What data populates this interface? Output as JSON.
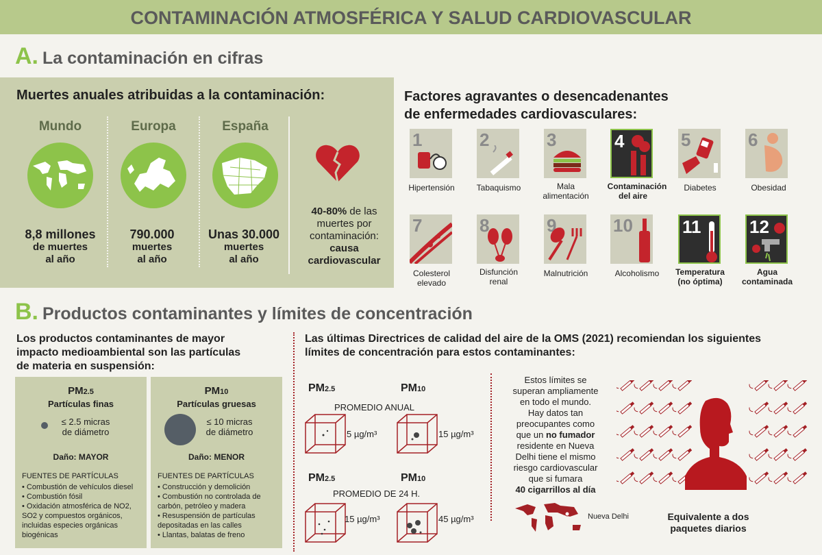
{
  "banner": "CONTAMINACIÓN ATMOSFÉRICA Y SALUD CARDIOVASCULAR",
  "section_a": {
    "letter": "A.",
    "title": "La contaminación en cifras"
  },
  "deaths": {
    "title": "Muertes anuales atribuidas a la contaminación:",
    "regions": [
      {
        "name": "Mundo",
        "big": "8,8 millones",
        "line1": "de muertes",
        "line2": "al año"
      },
      {
        "name": "Europa",
        "big": "790.000",
        "line1": "muertes",
        "line2": "al año"
      },
      {
        "name": "España",
        "big": "Unas 30.000",
        "line1": "muertes",
        "line2": "al año"
      }
    ],
    "cardio": {
      "pct": "40-80%",
      "rest1": " de las",
      "line2": "muertes por",
      "line3": "contaminación:",
      "line4": "causa",
      "line5": "cardiovascular"
    }
  },
  "factors": {
    "title1": "Factores agravantes o desencadenantes",
    "title2": "de enfermedades cardiovasculares:",
    "items": [
      {
        "num": "1",
        "label": "Hipertensión",
        "label2": ""
      },
      {
        "num": "2",
        "label": "Tabaquismo",
        "label2": ""
      },
      {
        "num": "3",
        "label": "Mala",
        "label2": "alimentación"
      },
      {
        "num": "4",
        "label": "Contaminación",
        "label2": "del aire"
      },
      {
        "num": "5",
        "label": "Diabetes",
        "label2": ""
      },
      {
        "num": "6",
        "label": "Obesidad",
        "label2": ""
      },
      {
        "num": "7",
        "label": "Colesterol",
        "label2": "elevado"
      },
      {
        "num": "8",
        "label": "Disfunción",
        "label2": "renal"
      },
      {
        "num": "9",
        "label": "Malnutrición",
        "label2": ""
      },
      {
        "num": "10",
        "label": "Alcoholismo",
        "label2": ""
      },
      {
        "num": "11",
        "label": "Temperatura",
        "label2": "(no óptima)"
      },
      {
        "num": "12",
        "label": "Agua",
        "label2": "contaminada"
      }
    ]
  },
  "section_b": {
    "letter": "B.",
    "title": "Productos contaminantes y límites de concentración"
  },
  "products": {
    "intro1": "Los productos contaminantes de mayor",
    "intro2": "impacto medioambiental son las partículas",
    "intro3": "de materia en suspensión:",
    "fine": {
      "pm": "PM",
      "sub": "2.5",
      "name": "Partículas finas",
      "size1": "≤ 2.5 micras",
      "size2": "de diámetro",
      "damage": "Daño: MAYOR",
      "sources_title": "FUENTES DE PARTÍCULAS",
      "sources": [
        "• Combustión de vehículos diesel",
        "• Combustión fósil",
        "• Oxidación atmosférica de NO2,",
        "SO2 y compuestos orgánicos,",
        "incluidas especies orgánicas",
        "biogénicas"
      ]
    },
    "coarse": {
      "pm": "PM",
      "sub": "10",
      "name": "Partículas gruesas",
      "size1": "≤ 10 micras",
      "size2": "de diámetro",
      "damage": "Daño: MENOR",
      "sources_title": "FUENTES DE PARTÍCULAS",
      "sources": [
        "• Construcción y demolición",
        "• Combustión no controlada de",
        "carbón, petróleo y madera",
        "• Resuspensión de partículas",
        "depositadas en las calles",
        "• Llantas, balatas de freno"
      ]
    }
  },
  "oms": {
    "intro1": "Las últimas Directrices de calidad del aire de la OMS (2021) recomiendan los siguientes",
    "intro2": "límites de concentración para estos contaminantes:",
    "annual_label": "PROMEDIO ANUAL",
    "daily_label": "PROMEDIO DE 24 H.",
    "pm25": "PM",
    "pm25_sub": "2.5",
    "pm10": "PM",
    "pm10_sub": "10",
    "annual_pm25": "5 µg/m³",
    "annual_pm10": "15 µg/m³",
    "daily_pm25": "15 µg/m³",
    "daily_pm10": "45 µg/m³"
  },
  "delhi": {
    "lines": [
      "Estos límites se",
      "superan ampliamente",
      "en todo el mundo.",
      "Hay datos tan",
      "preocupantes como"
    ],
    "line6a": "que un ",
    "line6b": "no fumador",
    "lines2": [
      "residente en Nueva",
      "Delhi tiene el mismo",
      "riesgo cardiovascular",
      "que si fumara"
    ],
    "last": "40 cigarrillos al día",
    "city": "Nueva Delhi",
    "equiv1": "Equivalente a dos",
    "equiv2": "paquetes diarios"
  },
  "colors": {
    "green": "#8dc34a",
    "olive_panel": "#cacfae",
    "red": "#a32025",
    "dark_red": "#8a1a1d"
  }
}
